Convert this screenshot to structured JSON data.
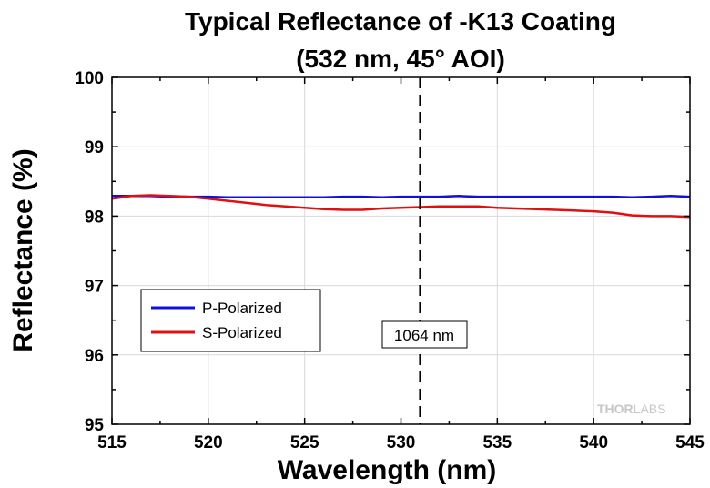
{
  "chart_data": {
    "type": "line",
    "title_line1": "Typical Reflectance of -K13 Coating",
    "title_line2": "(532 nm, 45° AOI)",
    "xlabel": "Wavelength (nm)",
    "ylabel": "Reflectance (%)",
    "xlim": [
      515,
      545
    ],
    "ylim": [
      95,
      100
    ],
    "xticks": [
      515,
      520,
      525,
      530,
      535,
      540,
      545
    ],
    "xtick_labels": [
      "515",
      "520",
      "525",
      "530",
      "535",
      "540",
      "545"
    ],
    "yticks": [
      95,
      96,
      97,
      98,
      99,
      100
    ],
    "ytick_labels": [
      "95",
      "96",
      "97",
      "98",
      "99",
      "100"
    ],
    "grid": true,
    "legend_position": "lower-left",
    "series": [
      {
        "name": "P-Polarized",
        "color": "#1010dd",
        "x": [
          515,
          516,
          517,
          518,
          519,
          520,
          521,
          522,
          523,
          524,
          525,
          526,
          527,
          528,
          529,
          530,
          531,
          532,
          533,
          534,
          535,
          536,
          537,
          538,
          539,
          540,
          541,
          542,
          543,
          544,
          545
        ],
        "y": [
          98.29,
          98.29,
          98.29,
          98.28,
          98.28,
          98.28,
          98.27,
          98.27,
          98.27,
          98.27,
          98.27,
          98.27,
          98.28,
          98.28,
          98.27,
          98.28,
          98.28,
          98.28,
          98.29,
          98.28,
          98.28,
          98.28,
          98.28,
          98.28,
          98.28,
          98.28,
          98.28,
          98.27,
          98.28,
          98.29,
          98.28
        ]
      },
      {
        "name": "S-Polarized",
        "color": "#e01010",
        "x": [
          515,
          516,
          517,
          518,
          519,
          520,
          521,
          522,
          523,
          524,
          525,
          526,
          527,
          528,
          529,
          530,
          531,
          532,
          533,
          534,
          535,
          536,
          537,
          538,
          539,
          540,
          541,
          542,
          543,
          544,
          545
        ],
        "y": [
          98.25,
          98.29,
          98.3,
          98.29,
          98.28,
          98.25,
          98.22,
          98.19,
          98.16,
          98.14,
          98.12,
          98.1,
          98.09,
          98.09,
          98.11,
          98.12,
          98.13,
          98.14,
          98.14,
          98.14,
          98.12,
          98.11,
          98.1,
          98.09,
          98.08,
          98.07,
          98.05,
          98.01,
          98.0,
          98.0,
          97.99
        ]
      }
    ],
    "vline": {
      "x": 531,
      "label": "1064 nm",
      "style": "dashed"
    },
    "watermark": "THORLABS"
  }
}
